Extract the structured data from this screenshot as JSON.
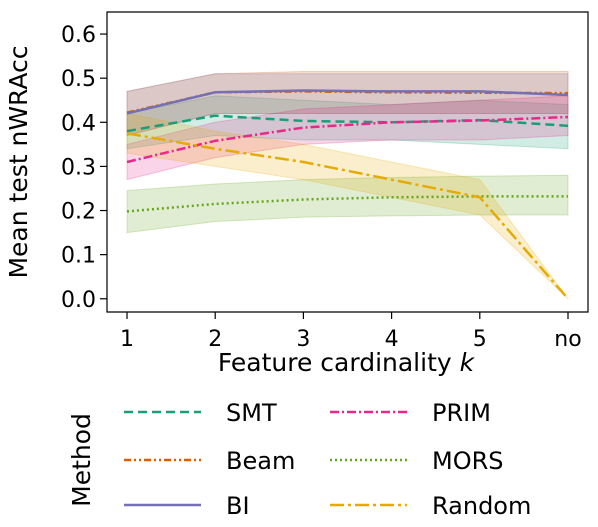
{
  "chart_data": {
    "type": "line",
    "title": "",
    "xlabel": "Feature cardinality",
    "xlabel_var": "k",
    "ylabel": "Mean test nWRAcc",
    "categories": [
      "1",
      "2",
      "3",
      "4",
      "5",
      "no"
    ],
    "ylim": [
      -0.03,
      0.65
    ],
    "yticks": [
      "0.0",
      "0.1",
      "0.2",
      "0.3",
      "0.4",
      "0.5",
      "0.6"
    ],
    "grid": false,
    "legend": {
      "title": "Method",
      "placement": "bottom"
    },
    "series": [
      {
        "name": "SMT",
        "color": "#1b9e77",
        "dash": "dashed",
        "values": [
          0.38,
          0.415,
          0.403,
          0.4,
          0.405,
          0.392
        ],
        "band_lower": [
          0.34,
          0.37,
          0.36,
          0.36,
          0.35,
          0.34
        ],
        "band_upper": [
          0.42,
          0.46,
          0.45,
          0.44,
          0.45,
          0.44
        ]
      },
      {
        "name": "Beam",
        "color": "#d95f02",
        "dash": "dashdotdot",
        "values": [
          0.422,
          0.468,
          0.47,
          0.468,
          0.467,
          0.466
        ],
        "band_lower": [
          0.37,
          0.42,
          0.42,
          0.42,
          0.42,
          0.42
        ],
        "band_upper": [
          0.47,
          0.51,
          0.515,
          0.515,
          0.515,
          0.515
        ]
      },
      {
        "name": "BI",
        "color": "#7570b3",
        "dash": "solid",
        "values": [
          0.42,
          0.468,
          0.472,
          0.47,
          0.47,
          0.462
        ],
        "band_lower": [
          0.37,
          0.42,
          0.42,
          0.42,
          0.42,
          0.42
        ],
        "band_upper": [
          0.47,
          0.51,
          0.51,
          0.51,
          0.51,
          0.51
        ]
      },
      {
        "name": "PRIM",
        "color": "#e7298a",
        "dash": "dashdot",
        "values": [
          0.31,
          0.358,
          0.388,
          0.4,
          0.404,
          0.412
        ],
        "band_lower": [
          0.27,
          0.32,
          0.35,
          0.36,
          0.36,
          0.37
        ],
        "band_upper": [
          0.35,
          0.4,
          0.43,
          0.44,
          0.45,
          0.46
        ]
      },
      {
        "name": "MORS",
        "color": "#66a61e",
        "dash": "dotted",
        "values": [
          0.198,
          0.215,
          0.225,
          0.23,
          0.232,
          0.232
        ],
        "band_lower": [
          0.15,
          0.175,
          0.185,
          0.188,
          0.19,
          0.19
        ],
        "band_upper": [
          0.245,
          0.26,
          0.27,
          0.275,
          0.278,
          0.28
        ]
      },
      {
        "name": "Random",
        "color": "#e6ab02",
        "dash": "longdashdot",
        "values": [
          0.375,
          0.34,
          0.31,
          0.27,
          0.23,
          0.0
        ],
        "band_lower": [
          0.33,
          0.3,
          0.27,
          0.23,
          0.19,
          0.0
        ],
        "band_upper": [
          0.42,
          0.38,
          0.35,
          0.31,
          0.27,
          0.0
        ]
      }
    ]
  }
}
